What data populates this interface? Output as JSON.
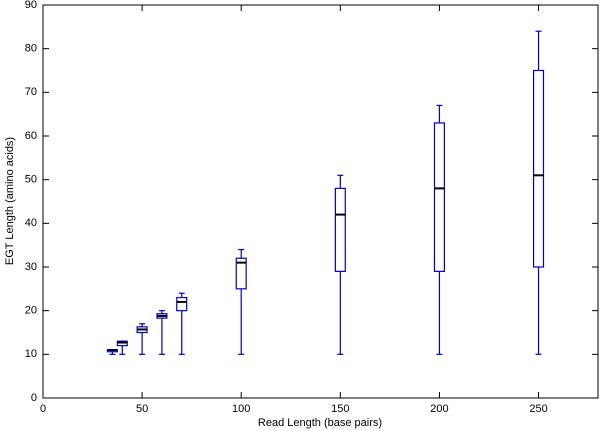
{
  "chart_data": {
    "type": "box",
    "x_label": "Read Length (base pairs)",
    "y_label": "EGT Length (amino acids)",
    "x": [
      35,
      40,
      50,
      60,
      70,
      100,
      150,
      200,
      250
    ],
    "min": [
      10,
      10,
      10,
      10,
      10,
      10,
      10,
      10,
      10
    ],
    "q1": [
      10.6,
      12,
      15,
      18.3,
      20,
      25,
      29,
      29,
      30
    ],
    "median": [
      11,
      12.7,
      15.7,
      18.8,
      22,
      31,
      42,
      48,
      51
    ],
    "q3": [
      11,
      13,
      16.3,
      19.3,
      23,
      32,
      48,
      63,
      75
    ],
    "max": [
      11,
      13,
      17,
      20,
      24,
      34,
      51,
      67,
      84
    ],
    "box_width": 5,
    "color": "#0000cc",
    "median_color": "#000000",
    "xlim": [
      0,
      280
    ],
    "xticks": [
      0,
      50,
      100,
      150,
      200,
      250
    ],
    "ylim": [
      0,
      90
    ],
    "yticks": [
      0,
      10,
      20,
      30,
      40,
      50,
      60,
      70,
      80,
      90
    ],
    "grid": false
  }
}
